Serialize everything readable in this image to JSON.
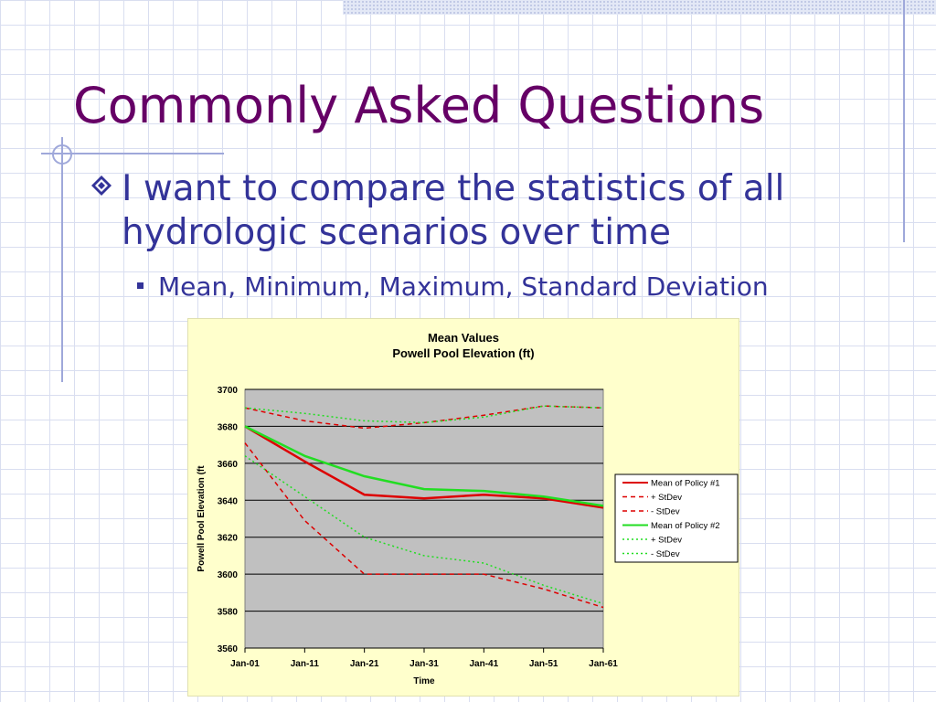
{
  "slide": {
    "title": "Commonly Asked Questions",
    "bullet1": "I want to compare the statistics of all hydrologic scenarios over time",
    "bullet2": "Mean, Minimum, Maximum, Standard Deviation"
  },
  "colors": {
    "title": "#660066",
    "text": "#333399",
    "policy1": "#dd0000",
    "policy2": "#22dd22",
    "plot_bg": "#c0c0c0",
    "chart_bg": "#ffffcc"
  },
  "chart_data": {
    "type": "line",
    "title": "Mean Values",
    "subtitle": "Powell Pool Elevation (ft)",
    "xlabel": "Time",
    "ylabel": "Powell Pool Elevation (ft",
    "ylim": [
      3560,
      3700
    ],
    "yticks": [
      "3560",
      "3580",
      "3600",
      "3620",
      "3640",
      "3660",
      "3680",
      "3700"
    ],
    "categories": [
      "Jan-01",
      "Jan-11",
      "Jan-21",
      "Jan-31",
      "Jan-41",
      "Jan-51",
      "Jan-61"
    ],
    "grid": "horizontal",
    "legend_position": "right",
    "series": [
      {
        "name": "Mean of Policy #1",
        "color": "#dd0000",
        "style": "solid",
        "values": [
          3680,
          3661,
          3643,
          3641,
          3643,
          3641,
          3636
        ]
      },
      {
        "name": "+ StDev",
        "color": "#dd0000",
        "style": "dashed",
        "values": [
          3690,
          3683,
          3679,
          3682,
          3686,
          3691,
          3690
        ]
      },
      {
        "name": "- StDev",
        "color": "#dd0000",
        "style": "dashed",
        "values": [
          3671,
          3629,
          3600,
          3600,
          3600,
          3592,
          3582
        ]
      },
      {
        "name": "Mean of Policy #2",
        "color": "#22dd22",
        "style": "solid",
        "values": [
          3680,
          3664,
          3653,
          3646,
          3645,
          3642,
          3637
        ]
      },
      {
        "name": "+ StDev",
        "color": "#22dd22",
        "style": "dotted",
        "values": [
          3690,
          3687,
          3683,
          3682,
          3685,
          3691,
          3690
        ]
      },
      {
        "name": "- StDev",
        "color": "#22dd22",
        "style": "dotted",
        "values": [
          3664,
          3642,
          3620,
          3610,
          3606,
          3594,
          3584
        ]
      }
    ]
  }
}
